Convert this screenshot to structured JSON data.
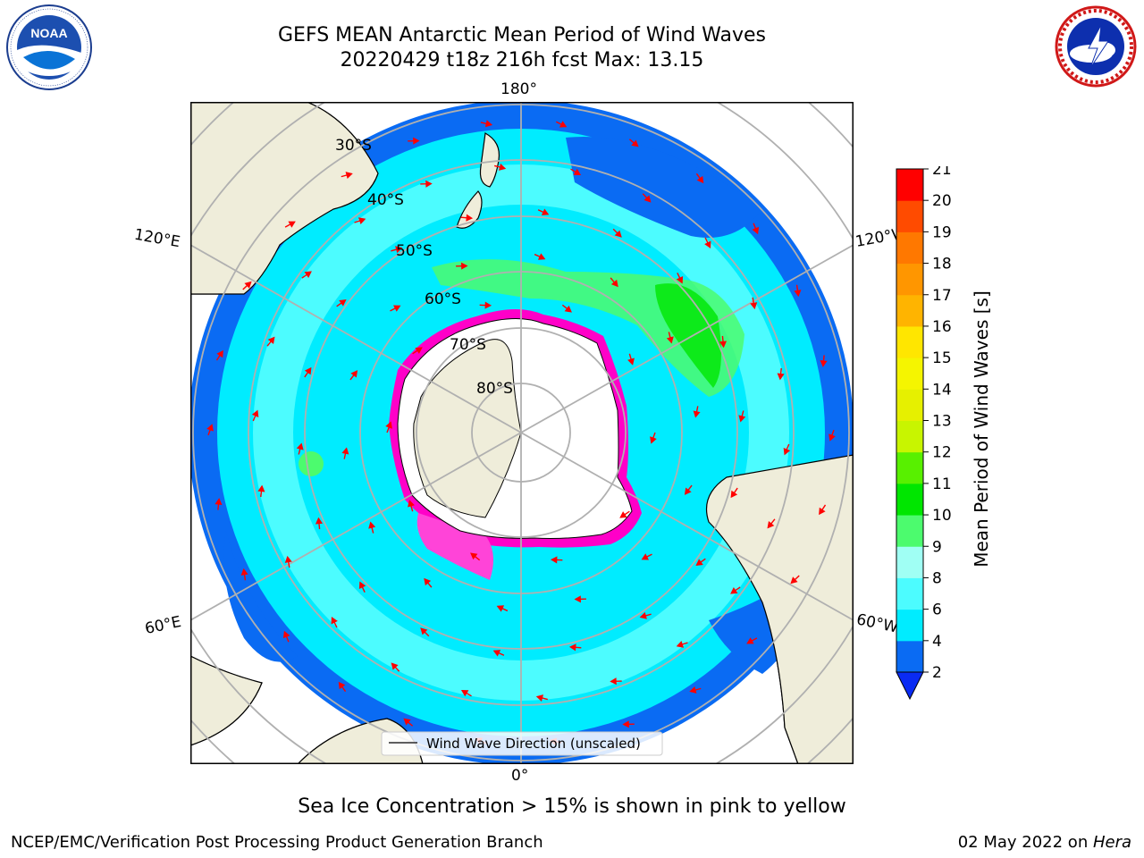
{
  "header": {
    "title_line1": "GEFS MEAN Antarctic Mean Period of Wind Waves",
    "title_line2": "20220429 t18z 216h fcst   Max: 13.15"
  },
  "logos": {
    "left": {
      "text": "NOAA",
      "ring_text": "NATIONAL OCEANIC AND ATMOSPHERIC ADMINISTRATION · U.S. DEPARTMENT OF COMMERCE"
    },
    "right": {
      "ring_text": "NATIONAL WEATHER SERVICE"
    }
  },
  "map": {
    "longitude_labels": {
      "top": "180°",
      "bottom": "0°",
      "upper_left": "120°E",
      "upper_right": "120°W",
      "lower_left": "60°E",
      "lower_right": "60°W"
    },
    "latitude_labels": [
      "30°S",
      "40°S",
      "50°S",
      "60°S",
      "70°S",
      "80°S"
    ],
    "legend_label": "Wind Wave Direction (unscaled)",
    "colors": {
      "land": "#efedda",
      "ocean_deep": "#0a6bf3",
      "ocean_mid": "#00ecff",
      "ocean_light": "#4cfcff",
      "sea_ice": "#ff00c8",
      "wave_arrows": "#ff0000"
    }
  },
  "colorbar": {
    "label": "Mean Period of Wind Waves [s]",
    "ticks": [
      "2",
      "4",
      "6",
      "8",
      "9",
      "10",
      "11",
      "12",
      "13",
      "14",
      "15",
      "16",
      "17",
      "18",
      "19",
      "20",
      "21"
    ],
    "colors": [
      "#0a6bf3",
      "#00ecff",
      "#4cfcff",
      "#a0fff4",
      "#4cfb6e",
      "#00e600",
      "#58f000",
      "#c8f500",
      "#e6f000",
      "#f5f500",
      "#ffe600",
      "#ffb400",
      "#ff9600",
      "#ff7800",
      "#ff4b00",
      "#ff0000"
    ],
    "extend_color": "#0a2bf3"
  },
  "caption": "Sea Ice Concentration > 15% is shown in pink to yellow",
  "footer": {
    "left": "NCEP/EMC/Verification Post Processing Product Generation Branch",
    "right_date": "02 May 2022 on ",
    "right_machine": "Hera"
  }
}
